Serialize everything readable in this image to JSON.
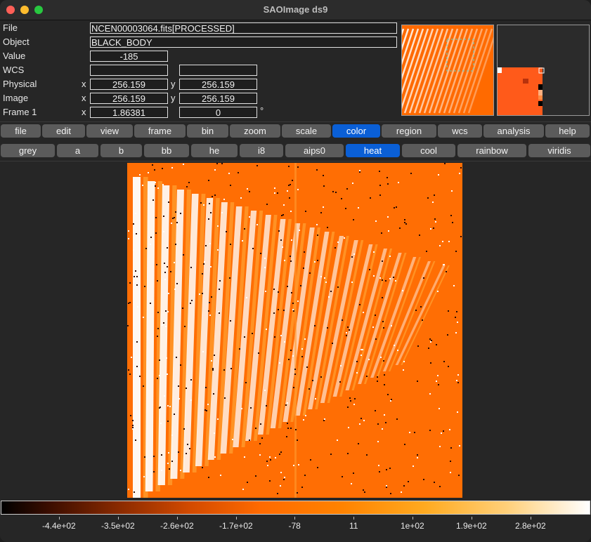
{
  "window": {
    "title": "SAOImage ds9"
  },
  "info": {
    "file_label": "File",
    "file_value": "NCEN00003064.fits[PROCESSED]",
    "object_label": "Object",
    "object_value": "BLACK_BODY",
    "value_label": "Value",
    "value_value": "-185",
    "wcs_label": "WCS",
    "wcs_value1": "",
    "wcs_value2": "",
    "physical_label": "Physical",
    "physical_x": "256.159",
    "physical_y": "256.159",
    "image_label": "Image",
    "image_x": "256.159",
    "image_y": "256.159",
    "frame_label": "Frame 1",
    "frame_zoom": "1.86381",
    "frame_angle": "0",
    "degree_symbol": "°",
    "x_label": "x",
    "y_label": "y"
  },
  "menu": {
    "items": [
      "file",
      "edit",
      "view",
      "frame",
      "bin",
      "zoom",
      "scale",
      "color",
      "region",
      "wcs",
      "analysis",
      "help"
    ],
    "active": "color"
  },
  "colormaps": {
    "items": [
      "grey",
      "a",
      "b",
      "bb",
      "he",
      "i8",
      "aips0",
      "heat",
      "cool",
      "rainbow",
      "viridis"
    ],
    "active": "heat"
  },
  "colorbar": {
    "ticks": [
      "-4.4e+02",
      "-3.5e+02",
      "-2.6e+02",
      "-1.7e+02",
      "-78",
      "11",
      "1e+02",
      "1.9e+02",
      "2.8e+02"
    ]
  },
  "colors": {
    "accent": "#0a5fd6",
    "heat_base": "#ff6a00"
  }
}
